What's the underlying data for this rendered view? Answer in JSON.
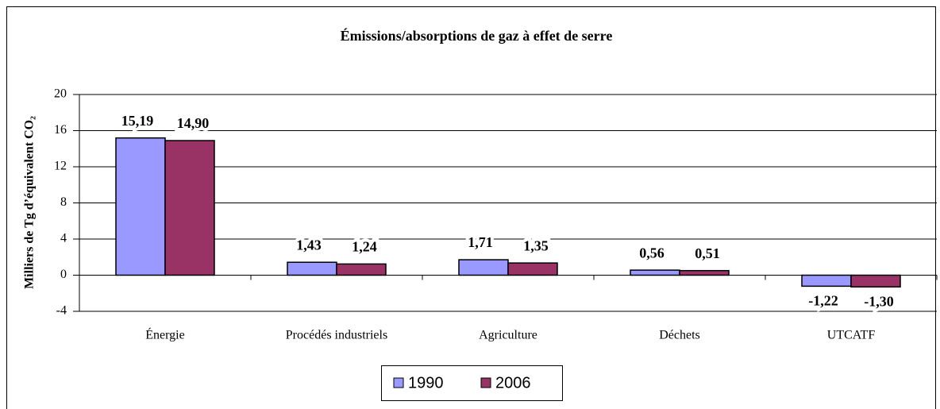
{
  "chart_data": {
    "type": "bar",
    "title": "Émissions/absorptions de gaz à effet de serre",
    "y_label": "Milliers de Tg d’équivalent CO₂",
    "categories": [
      "Énergie",
      "Procédés industriels",
      "Agriculture",
      "Déchets",
      "UTCATF"
    ],
    "series": [
      {
        "name": "1990",
        "color": "#9999ff",
        "values": [
          15.19,
          1.43,
          1.71,
          0.56,
          -1.22
        ],
        "value_labels": [
          "15,19",
          "1,43",
          "1,71",
          "0,56",
          "-1,22"
        ]
      },
      {
        "name": "2006",
        "color": "#993366",
        "values": [
          14.9,
          1.24,
          1.35,
          0.51,
          -1.3
        ],
        "value_labels": [
          "14,90",
          "1,24",
          "1,35",
          "0,51",
          "-1,30"
        ]
      }
    ],
    "ylim": [
      -4,
      20
    ],
    "yticks": [
      -4,
      0,
      4,
      8,
      12,
      16,
      20
    ],
    "grid": true,
    "legend": "bottom"
  }
}
